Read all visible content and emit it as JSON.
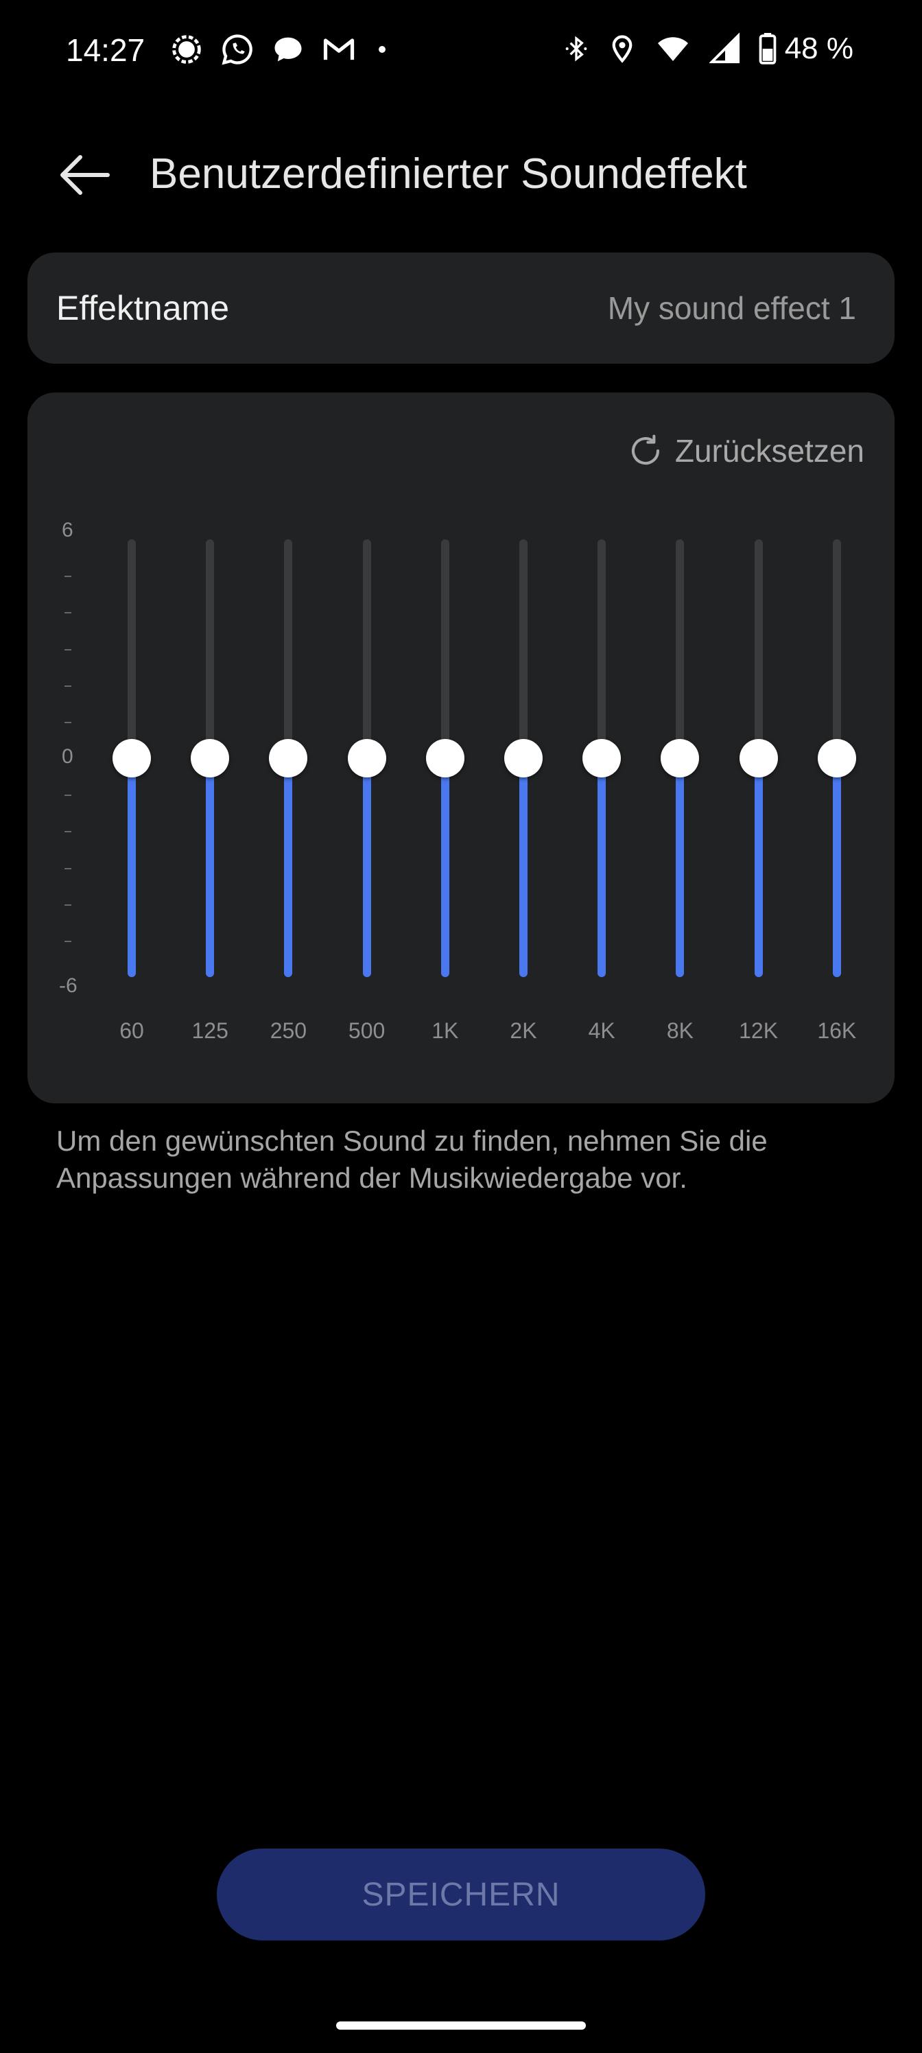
{
  "status_bar": {
    "time": "14:27",
    "notification_icons": [
      "signal-icon",
      "whatsapp-icon",
      "chat-icon",
      "gmail-icon",
      "dot-icon"
    ],
    "system_icons": [
      "bluetooth-icon",
      "location-icon",
      "wifi-icon",
      "cell-signal-icon",
      "battery-icon"
    ],
    "battery_percent": "48 %"
  },
  "header": {
    "back_icon": "arrow-left-icon",
    "title": "Benutzerdefinierter Soundeffekt"
  },
  "effect_name": {
    "label": "Effektname",
    "value": "My sound effect 1"
  },
  "equalizer": {
    "reset_label": "Zurücksetzen",
    "reset_icon": "refresh-icon",
    "y_axis": {
      "max_label": "6",
      "zero_label": "0",
      "min_label": "-6",
      "range": [
        -6,
        6
      ]
    },
    "bands": [
      {
        "freq": "60",
        "gain_db": 0
      },
      {
        "freq": "125",
        "gain_db": 0
      },
      {
        "freq": "250",
        "gain_db": 0
      },
      {
        "freq": "500",
        "gain_db": 0
      },
      {
        "freq": "1K",
        "gain_db": 0
      },
      {
        "freq": "2K",
        "gain_db": 0
      },
      {
        "freq": "4K",
        "gain_db": 0
      },
      {
        "freq": "8K",
        "gain_db": 0
      },
      {
        "freq": "12K",
        "gain_db": 0
      },
      {
        "freq": "16K",
        "gain_db": 0
      }
    ],
    "accent_color": "#4a78f0"
  },
  "hint_text": "Um den gewünschten Sound zu finden, nehmen Sie die Anpassungen während der Musikwiedergabe vor.",
  "save_button": {
    "label": "SPEICHERN",
    "enabled": false
  }
}
